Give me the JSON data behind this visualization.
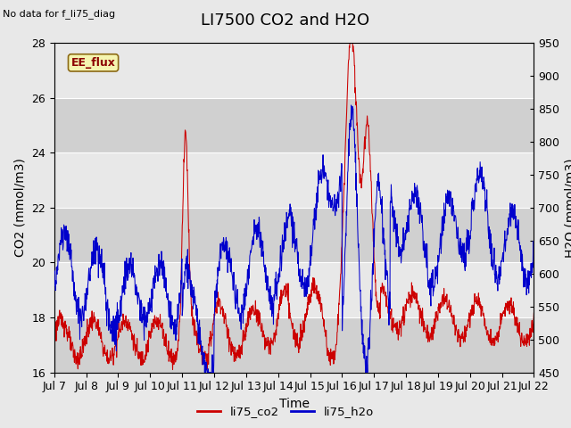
{
  "title": "LI7500 CO2 and H2O",
  "xlabel": "Time",
  "ylabel_left": "CO2 (mmol/m3)",
  "ylabel_right": "H2O (mmol/m3)",
  "annotation": "No data for f_li75_diag",
  "box_label": "EE_flux",
  "ylim_left": [
    16,
    28
  ],
  "ylim_right": [
    450,
    950
  ],
  "xtick_labels": [
    "Jul 7",
    "Jul 8",
    "Jul 9",
    "Jul 10",
    "Jul 11",
    "Jul 12",
    "Jul 13",
    "Jul 14",
    "Jul 15",
    "Jul 16",
    "Jul 17",
    "Jul 18",
    "Jul 19",
    "Jul 20",
    "Jul 21",
    "Jul 22"
  ],
  "legend_entries": [
    "li75_co2",
    "li75_h2o"
  ],
  "legend_colors": [
    "#cc0000",
    "#0000cc"
  ],
  "line_color_co2": "#cc0000",
  "line_color_h2o": "#0000cc",
  "background_color": "#e8e8e8",
  "plot_bg_color": "#e0e0e0",
  "band_color_dark": "#d0d0d0",
  "band_color_light": "#e8e8e8",
  "title_fontsize": 13,
  "label_fontsize": 10,
  "tick_fontsize": 9,
  "annotation_fontsize": 8,
  "n_points": 1500
}
